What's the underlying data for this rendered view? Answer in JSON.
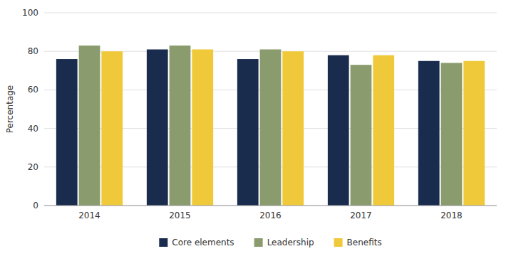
{
  "chart_data": {
    "type": "bar",
    "categories": [
      "2014",
      "2015",
      "2016",
      "2017",
      "2018"
    ],
    "series": [
      {
        "name": "Core elements",
        "color": "#1a2c4e",
        "values": [
          76,
          81,
          76,
          78,
          75
        ]
      },
      {
        "name": "Leadership",
        "color": "#8a9b6e",
        "values": [
          83,
          83,
          81,
          73,
          74
        ]
      },
      {
        "name": "Benefits",
        "color": "#f0c93a",
        "values": [
          80,
          81,
          80,
          78,
          75
        ]
      }
    ],
    "y_label": "Percentage",
    "ylim": [
      0,
      100
    ],
    "yticks": [
      0,
      20,
      40,
      60,
      80,
      100
    ],
    "grid": true,
    "legend": "bottom"
  }
}
